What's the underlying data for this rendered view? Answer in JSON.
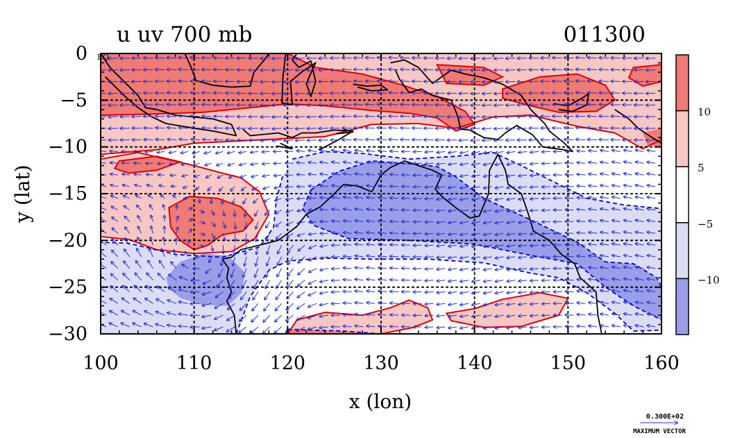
{
  "chart_data": {
    "type": "heatmap",
    "title_left": "u uv 700 mb",
    "title_right": "011300",
    "xlabel": "x (lon)",
    "ylabel": "y (lat)",
    "xlim": [
      100,
      160
    ],
    "ylim": [
      -30,
      0
    ],
    "x_ticks": [
      100,
      110,
      120,
      130,
      140,
      150,
      160
    ],
    "y_ticks": [
      0,
      -5,
      -10,
      -15,
      -20,
      -25,
      -30
    ],
    "x_tick_labels": [
      "100",
      "110",
      "120",
      "130",
      "140",
      "150",
      "160"
    ],
    "y_tick_labels": [
      "0",
      "−5",
      "−10",
      "−15",
      "−20",
      "−25",
      "−30"
    ],
    "eq_label": "EQ",
    "grid": true,
    "colorbar": {
      "placement": "right",
      "labels": [
        "10",
        "5",
        "−5",
        "−10"
      ],
      "bins": [
        {
          "range": [
            10,
            15
          ],
          "color": "#f07a74"
        },
        {
          "range": [
            5,
            10
          ],
          "color": "#f8c6c3"
        },
        {
          "range": [
            -5,
            5
          ],
          "color": "#ffffff"
        },
        {
          "range": [
            -10,
            -5
          ],
          "color": "#dcdcf5"
        },
        {
          "range": [
            -15,
            -10
          ],
          "color": "#9a9ee8"
        }
      ]
    },
    "vector_key": {
      "value_label": "0.300E+02",
      "caption": "MAXIMUM VECTOR"
    },
    "positive_contour_color": "#e00000",
    "negative_contour_color": "#0000d0",
    "vector_color": "#1f2fd0",
    "coastline_color": "#000000"
  }
}
